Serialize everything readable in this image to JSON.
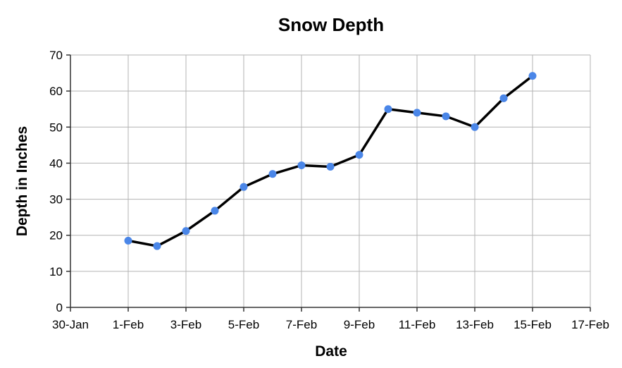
{
  "chart_data": {
    "type": "line",
    "title": "Snow Depth",
    "xlabel": "Date",
    "ylabel": "Depth in Inches",
    "x_ticks": [
      {
        "date": "2024-01-30",
        "label": "30-Jan"
      },
      {
        "date": "2024-02-01",
        "label": "1-Feb"
      },
      {
        "date": "2024-02-03",
        "label": "3-Feb"
      },
      {
        "date": "2024-02-05",
        "label": "5-Feb"
      },
      {
        "date": "2024-02-07",
        "label": "7-Feb"
      },
      {
        "date": "2024-02-09",
        "label": "9-Feb"
      },
      {
        "date": "2024-02-11",
        "label": "11-Feb"
      },
      {
        "date": "2024-02-13",
        "label": "13-Feb"
      },
      {
        "date": "2024-02-15",
        "label": "15-Feb"
      },
      {
        "date": "2024-02-17",
        "label": "17-Feb"
      }
    ],
    "xlim": [
      "2024-01-30",
      "2024-02-17"
    ],
    "ylim": [
      0,
      70
    ],
    "y_ticks": [
      0,
      10,
      20,
      30,
      40,
      50,
      60,
      70
    ],
    "grid": true,
    "series": [
      {
        "x": [
          "2024-02-01",
          "2024-02-02",
          "2024-02-03",
          "2024-02-04",
          "2024-02-05",
          "2024-02-06",
          "2024-02-07",
          "2024-02-08",
          "2024-02-09",
          "2024-02-10",
          "2024-02-11",
          "2024-02-12",
          "2024-02-13",
          "2024-02-14",
          "2024-02-15"
        ],
        "values": [
          18.5,
          17,
          21.2,
          26.8,
          33.4,
          37,
          39.4,
          39,
          42.3,
          55,
          54,
          53,
          50,
          58,
          64.2
        ]
      }
    ],
    "colors": {
      "line": "#000000",
      "marker": "#4a86e8"
    }
  }
}
